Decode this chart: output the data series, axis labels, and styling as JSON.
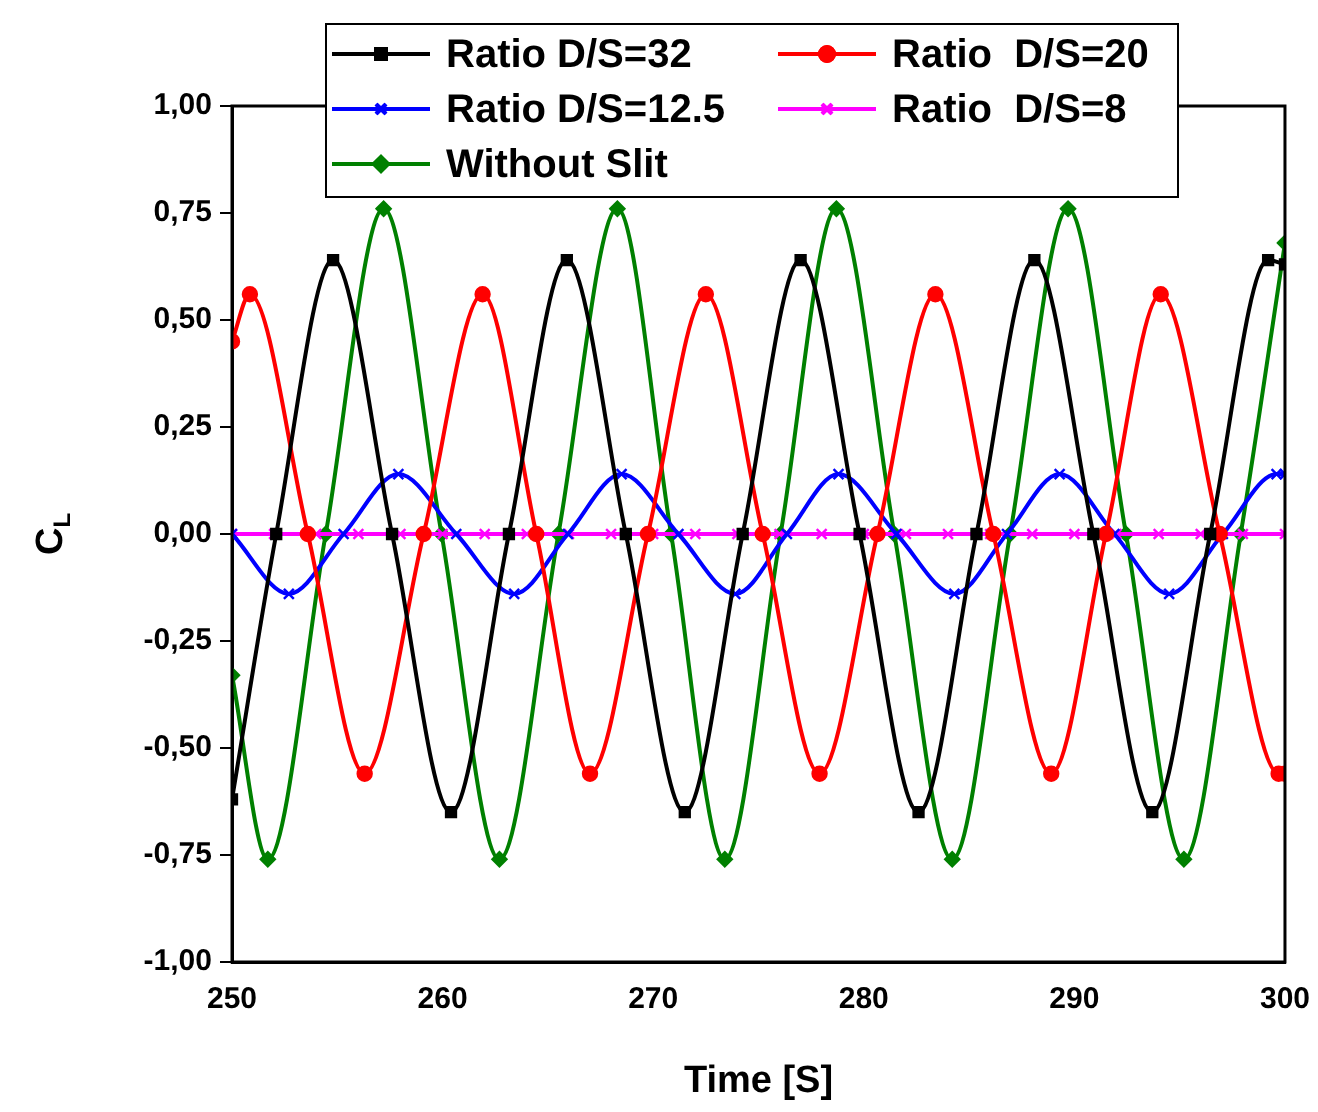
{
  "chart_data": {
    "type": "line",
    "xlabel": "Time [S]",
    "ylabel": "C$_{L}$",
    "xlim": [
      250,
      300
    ],
    "xticks": [
      250,
      260,
      270,
      280,
      290,
      300
    ],
    "ylim": [
      -1,
      1
    ],
    "yticks": [
      {
        "value": -1,
        "label": "-1,00"
      },
      {
        "value": -0.75,
        "label": "-0,75"
      },
      {
        "value": -0.5,
        "label": "-0,50"
      },
      {
        "value": -0.25,
        "label": "-0,25"
      },
      {
        "value": 0,
        "label": "0,00"
      },
      {
        "value": 0.25,
        "label": "0,25"
      },
      {
        "value": 0.5,
        "label": "0,50"
      },
      {
        "value": 0.75,
        "label": "0,75"
      },
      {
        "value": 1,
        "label": "1,00"
      }
    ],
    "grid": false,
    "legend": "top",
    "line_style": "solid",
    "series": [
      {
        "name": "Ratio D/S=32",
        "color": "#000000",
        "marker": "square",
        "x": [
          250,
          252.1,
          254.8,
          257.6,
          260.4,
          263.15,
          265.9,
          268.7,
          271.5,
          274.25,
          277.0,
          279.8,
          282.6,
          285.35,
          288.1,
          290.9,
          293.7,
          296.45,
          299.2,
          300
        ],
        "values": [
          -0.62,
          0,
          0.64,
          0,
          -0.65,
          0,
          0.64,
          0,
          -0.65,
          0,
          0.64,
          0,
          -0.65,
          0,
          0.64,
          0,
          -0.65,
          0,
          0.64,
          0.63
        ]
      },
      {
        "name": "Ratio  D/S=20",
        "color": "#ff0000",
        "marker": "circle",
        "x": [
          250,
          250.85,
          253.6,
          256.3,
          259.1,
          261.9,
          264.45,
          267.0,
          269.75,
          272.5,
          275.2,
          277.9,
          280.65,
          283.4,
          286.15,
          288.9,
          291.5,
          294.1,
          296.9,
          299.7,
          300
        ],
        "values": [
          0.45,
          0.56,
          0,
          -0.56,
          0,
          0.56,
          0,
          -0.56,
          0,
          0.56,
          0,
          -0.56,
          0,
          0.56,
          0,
          -0.56,
          0,
          0.56,
          0,
          -0.56,
          -0.56
        ]
      },
      {
        "name": "Ratio D/S=12.5",
        "color": "#0000ff",
        "marker": "cross",
        "x": [
          250,
          252.7,
          255.3,
          257.9,
          260.65,
          263.4,
          265.95,
          268.5,
          271.2,
          273.9,
          276.35,
          278.8,
          281.55,
          284.3,
          286.8,
          289.3,
          291.9,
          294.5,
          297.05,
          299.6,
          300
        ],
        "values": [
          0,
          -0.14,
          0,
          0.14,
          0,
          -0.14,
          0,
          0.14,
          0,
          -0.14,
          0,
          0.14,
          0,
          -0.14,
          0,
          0.14,
          0,
          -0.14,
          0,
          0.14,
          0.14
        ]
      },
      {
        "name": "Ratio  D/S=8",
        "color": "#ff00ff",
        "marker": "cross",
        "x": [
          250,
          252,
          254,
          256,
          258,
          260,
          262,
          264,
          266,
          268,
          270,
          272,
          274,
          276,
          278,
          280,
          282,
          284,
          286,
          288,
          290,
          292,
          294,
          296,
          298,
          300
        ],
        "values": [
          0,
          0,
          0,
          0,
          0,
          0,
          0,
          0,
          0,
          0,
          0,
          0,
          0,
          0,
          0,
          0,
          0,
          0,
          0,
          0,
          0,
          0,
          0,
          0,
          0,
          0
        ]
      },
      {
        "name": "Without Slit",
        "color": "#008000",
        "marker": "diamond",
        "x": [
          250,
          251.7,
          254.45,
          257.2,
          259.95,
          262.7,
          265.5,
          268.3,
          270.85,
          273.4,
          276.05,
          278.7,
          281.45,
          284.2,
          286.95,
          289.7,
          292.45,
          295.2,
          297.9,
          300
        ],
        "values": [
          -0.33,
          -0.76,
          0,
          0.76,
          0,
          -0.76,
          0,
          0.76,
          0,
          -0.76,
          0,
          0.76,
          0,
          -0.76,
          0,
          0.76,
          0,
          -0.76,
          0,
          0.68
        ]
      }
    ]
  }
}
